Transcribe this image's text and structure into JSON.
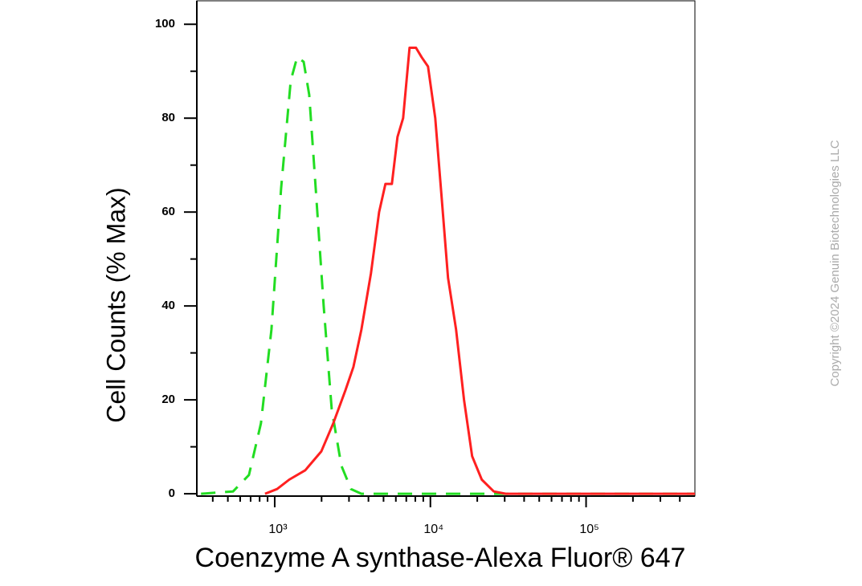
{
  "chart_data": {
    "type": "line",
    "xlabel": "Coenzyme A synthase-Alexa Fluor® 647",
    "ylabel": "Cell Counts (% Max)",
    "copyright": "Copyright ©2024 Genuin Biotechnologies LLC",
    "xscale": "log",
    "xlim": [
      316,
      500000
    ],
    "ylim": [
      -0.5,
      105
    ],
    "xticks": [
      {
        "value": 1000,
        "label": "10³"
      },
      {
        "value": 10000,
        "label": "10⁴"
      },
      {
        "value": 100000,
        "label": "10⁵"
      }
    ],
    "xminorticks": [
      400,
      500,
      600,
      700,
      800,
      900,
      2000,
      3000,
      4000,
      5000,
      6000,
      7000,
      8000,
      9000,
      20000,
      30000,
      40000,
      50000,
      60000,
      70000,
      80000,
      90000,
      200000,
      300000,
      400000
    ],
    "yticks": [
      0,
      20,
      40,
      60,
      80,
      100
    ],
    "yminorticks": [
      10,
      30,
      50,
      70,
      90
    ],
    "series": [
      {
        "color": "#22dd22",
        "dash": true,
        "x": [
          336,
          540,
          683,
          816,
          953,
          1099,
          1267,
          1393,
          1534,
          1666,
          1833,
          2062,
          2322,
          2679,
          3090,
          3606,
          500000
        ],
        "values": [
          0,
          0.5,
          4,
          15,
          35,
          65,
          88,
          93,
          92,
          85,
          65,
          40,
          18,
          6,
          1,
          0,
          0
        ]
      },
      {
        "color": "#ff2020",
        "dash": false,
        "x": [
          867,
          1036,
          1239,
          1571,
          1990,
          2377,
          2843,
          3201,
          3606,
          4155,
          4682,
          5146,
          5660,
          6150,
          6683,
          7345,
          8075,
          8776,
          9650,
          10740,
          11810,
          12980,
          14620,
          16450,
          18530,
          21370,
          25530,
          30550,
          500000
        ],
        "values": [
          0,
          1,
          3,
          5,
          9,
          15,
          22,
          27,
          35,
          47,
          60,
          66,
          66,
          76,
          80,
          95,
          95,
          93,
          91,
          80,
          63,
          46,
          35,
          20,
          8,
          3,
          0.5,
          0,
          0
        ]
      }
    ]
  }
}
